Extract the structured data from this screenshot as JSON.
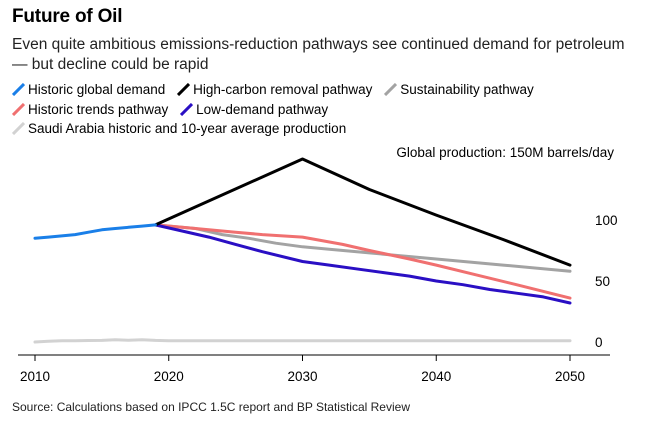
{
  "title": "Future of Oil",
  "subtitle": "Even quite ambitious emissions-reduction pathways see continued demand for petroleum — but decline could be rapid",
  "legend": [
    {
      "name": "Historic global demand",
      "color": "#1a7fe8"
    },
    {
      "name": "High-carbon removal pathway",
      "color": "#000000"
    },
    {
      "name": "Sustainability pathway",
      "color": "#a3a3a3"
    },
    {
      "name": "Historic trends pathway",
      "color": "#f07070"
    },
    {
      "name": "Low-demand pathway",
      "color": "#2a0fc4"
    },
    {
      "name": "Saudi Arabia historic and 10-year average production",
      "color": "#d2d2d2"
    }
  ],
  "chart_data": {
    "type": "line",
    "title": "Future of Oil",
    "annotation": "Global production: 150M barrels/day",
    "xlabel": "",
    "ylabel": "",
    "xlim": [
      2010,
      2052
    ],
    "ylim": [
      0,
      150
    ],
    "x_ticks": [
      "2010",
      "2020",
      "2030",
      "2040",
      "2050"
    ],
    "y_ticks": [
      "0",
      "50",
      "100"
    ],
    "y_tick_values": [
      0,
      50,
      100
    ],
    "x_tick_values": [
      2010,
      2020,
      2030,
      2040,
      2050
    ],
    "series": [
      {
        "name": "Saudi Arabia historic and 10-year average production",
        "color": "#d2d2d2",
        "width": 3,
        "points": [
          [
            2010,
            0
          ],
          [
            2011,
            0.6
          ],
          [
            2012,
            1.1
          ],
          [
            2013,
            1.1
          ],
          [
            2014,
            1.2
          ],
          [
            2015,
            1.3
          ],
          [
            2016,
            1.8
          ],
          [
            2017,
            1.4
          ],
          [
            2018,
            1.9
          ],
          [
            2019,
            1.3
          ],
          [
            2020,
            1.0
          ],
          [
            2030,
            1.0
          ],
          [
            2040,
            1.0
          ],
          [
            2050,
            1.0
          ]
        ]
      },
      {
        "name": "Sustainability pathway",
        "color": "#a3a3a3",
        "width": 3,
        "points": [
          [
            2019,
            96
          ],
          [
            2022,
            93
          ],
          [
            2024,
            88
          ],
          [
            2026,
            85
          ],
          [
            2028,
            81
          ],
          [
            2030,
            78
          ],
          [
            2032,
            76
          ],
          [
            2035,
            73
          ],
          [
            2040,
            68
          ],
          [
            2045,
            63
          ],
          [
            2050,
            58
          ]
        ]
      },
      {
        "name": "Historic trends pathway",
        "color": "#f07070",
        "width": 3,
        "points": [
          [
            2019,
            96
          ],
          [
            2021,
            94
          ],
          [
            2023,
            92
          ],
          [
            2025,
            90
          ],
          [
            2027,
            88
          ],
          [
            2030,
            86
          ],
          [
            2033,
            80
          ],
          [
            2035,
            75
          ],
          [
            2038,
            68
          ],
          [
            2040,
            63
          ],
          [
            2043,
            55
          ],
          [
            2046,
            47
          ],
          [
            2050,
            36
          ]
        ]
      },
      {
        "name": "Low-demand pathway",
        "color": "#2a0fc4",
        "width": 3,
        "points": [
          [
            2019,
            96
          ],
          [
            2021,
            91
          ],
          [
            2023,
            86
          ],
          [
            2025,
            80
          ],
          [
            2027,
            74
          ],
          [
            2030,
            66
          ],
          [
            2032,
            63
          ],
          [
            2034,
            60
          ],
          [
            2036,
            57
          ],
          [
            2038,
            54
          ],
          [
            2040,
            50
          ],
          [
            2042,
            47
          ],
          [
            2044,
            43
          ],
          [
            2046,
            40
          ],
          [
            2048,
            37
          ],
          [
            2050,
            32
          ]
        ]
      },
      {
        "name": "High-carbon removal pathway",
        "color": "#000000",
        "width": 3,
        "points": [
          [
            2019,
            96
          ],
          [
            2030,
            150
          ],
          [
            2035,
            125
          ],
          [
            2040,
            104
          ],
          [
            2045,
            84
          ],
          [
            2050,
            63
          ]
        ]
      },
      {
        "name": "Historic global demand",
        "color": "#1a7fe8",
        "width": 3,
        "points": [
          [
            2010,
            85
          ],
          [
            2011,
            86
          ],
          [
            2012,
            87
          ],
          [
            2013,
            88
          ],
          [
            2014,
            90
          ],
          [
            2015,
            92
          ],
          [
            2016,
            93
          ],
          [
            2017,
            94
          ],
          [
            2018,
            95
          ],
          [
            2019,
            96
          ]
        ]
      }
    ]
  },
  "source": "Source: Calculations based on IPCC 1.5C report and BP Statistical Review"
}
